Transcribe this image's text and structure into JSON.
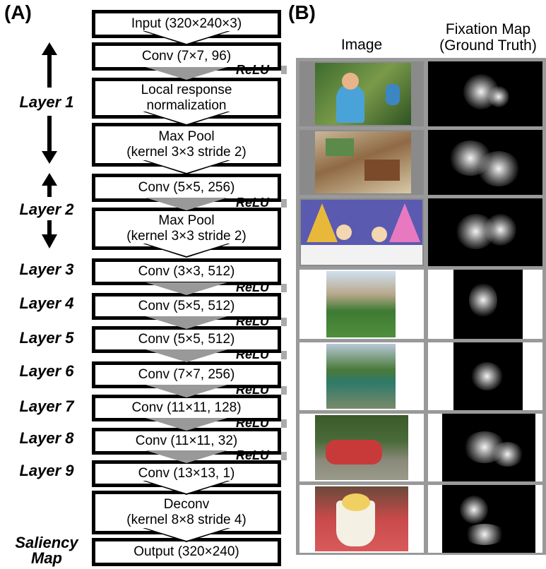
{
  "panel_a_label": "(A)",
  "panel_b_label": "(B)",
  "layers": {
    "layer1": "Layer 1",
    "layer2": "Layer 2",
    "layer3": "Layer 3",
    "layer4": "Layer 4",
    "layer5": "Layer 5",
    "layer6": "Layer 6",
    "layer7": "Layer 7",
    "layer8": "Layer 8",
    "layer9": "Layer 9",
    "saliency_line1": "Saliency",
    "saliency_line2": "Map"
  },
  "boxes": {
    "input": "Input (320×240×3)",
    "conv1": "Conv (7×7, 96)",
    "lrn_line1": "Local response",
    "lrn_line2": "normalization",
    "pool1_line1": "Max Pool",
    "pool1_line2": "(kernel 3×3 stride 2)",
    "conv2": "Conv (5×5, 256)",
    "pool2_line1": "Max Pool",
    "pool2_line2": "(kernel 3×3 stride 2)",
    "conv3": "Conv (3×3, 512)",
    "conv4": "Conv (5×5, 512)",
    "conv5": "Conv (5×5, 512)",
    "conv6": "Conv (7×7, 256)",
    "conv7": "Conv (11×11, 128)",
    "conv8": "Conv (11×11, 32)",
    "conv9": "Conv (13×13, 1)",
    "deconv_line1": "Deconv",
    "deconv_line2": "(kernel 8×8 stride 4)",
    "output": "Output (320×240)"
  },
  "relu_label": "ReLU",
  "columns": {
    "image": "Image",
    "fixation_line1": "Fixation Map",
    "fixation_line2": "(Ground Truth)"
  }
}
